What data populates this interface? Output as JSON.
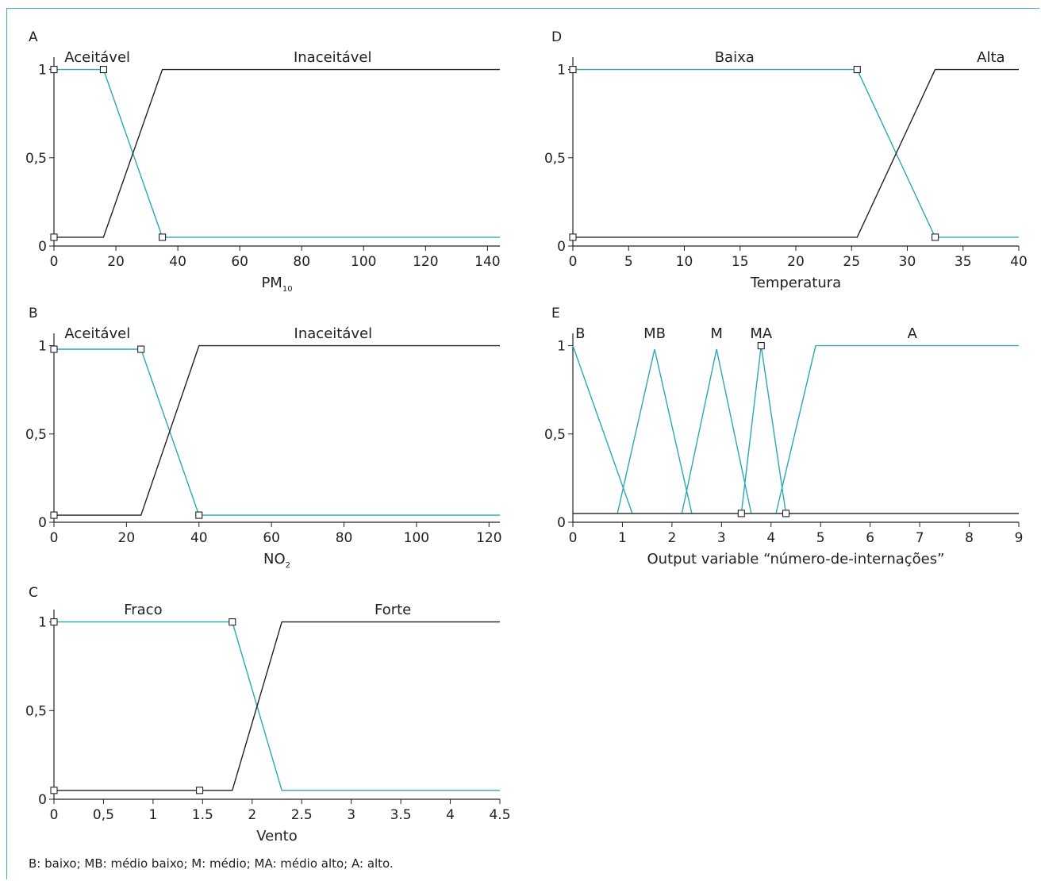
{
  "footnote": "B: baixo; MB: médio baixo; M: médio; MA: médio alto; A: alto.",
  "colors": {
    "teal": "#29a9b6",
    "black": "#222222",
    "frame": "#3bb3bf"
  },
  "chart_data": [
    {
      "panel": "A",
      "type": "line",
      "xlabel": "PM",
      "xlabel_sub": "10",
      "xlim": [
        0,
        144
      ],
      "ylim": [
        0,
        1.07
      ],
      "xticks": [
        "0",
        "20",
        "40",
        "60",
        "80",
        "100",
        "120",
        "140"
      ],
      "xtick_values": [
        0,
        20,
        40,
        60,
        80,
        100,
        120,
        140
      ],
      "yticks": [
        "0",
        "0,5",
        "1"
      ],
      "ytick_values": [
        0,
        0.5,
        1
      ],
      "series": [
        {
          "name": "Aceitável",
          "color": "teal",
          "x": [
            0,
            16,
            35,
            144
          ],
          "y": [
            1,
            1,
            0.05,
            0.05
          ],
          "markers": [
            0,
            1,
            2
          ]
        },
        {
          "name": "Inaceitável",
          "color": "black",
          "x": [
            0,
            16,
            35,
            144
          ],
          "y": [
            0.05,
            0.05,
            1,
            1
          ],
          "markers": [
            0
          ]
        }
      ],
      "labels": [
        {
          "text": "Aceitável",
          "x": 14,
          "y": 1.07
        },
        {
          "text": "Inaceitável",
          "x": 90,
          "y": 1.07
        }
      ]
    },
    {
      "panel": "B",
      "type": "line",
      "xlabel": "NO",
      "xlabel_sub": "2",
      "xlim": [
        0,
        123
      ],
      "ylim": [
        0,
        1.07
      ],
      "xticks": [
        "0",
        "20",
        "40",
        "60",
        "80",
        "100",
        "120"
      ],
      "xtick_values": [
        0,
        20,
        40,
        60,
        80,
        100,
        120
      ],
      "yticks": [
        "0",
        "0,5",
        "1"
      ],
      "ytick_values": [
        0,
        0.5,
        1
      ],
      "series": [
        {
          "name": "Aceitável",
          "color": "teal",
          "x": [
            0,
            24,
            40,
            123
          ],
          "y": [
            0.98,
            0.98,
            0.04,
            0.04
          ],
          "markers": [
            0,
            1,
            2
          ]
        },
        {
          "name": "Inaceitável",
          "color": "black",
          "x": [
            0,
            24,
            40,
            123
          ],
          "y": [
            0.04,
            0.04,
            1,
            1
          ],
          "markers": [
            0
          ]
        }
      ],
      "labels": [
        {
          "text": "Aceitável",
          "x": 12,
          "y": 1.07
        },
        {
          "text": "Inaceitável",
          "x": 77,
          "y": 1.07
        }
      ]
    },
    {
      "panel": "C",
      "type": "line",
      "xlabel": "Vento",
      "xlabel_sub": "",
      "xlim": [
        0,
        4.5
      ],
      "ylim": [
        0,
        1.07
      ],
      "xticks": [
        "0",
        "0,5",
        "1",
        "1.5",
        "2",
        "2.5",
        "3",
        "3.5",
        "4",
        "4.5"
      ],
      "xtick_values": [
        0,
        0.5,
        1,
        1.5,
        2,
        2.5,
        3,
        3.5,
        4,
        4.5
      ],
      "yticks": [
        "0",
        "0,5",
        "1"
      ],
      "ytick_values": [
        0,
        0.5,
        1
      ],
      "series": [
        {
          "name": "Fraco",
          "color": "teal",
          "x": [
            0,
            1.8,
            2.3,
            4.5
          ],
          "y": [
            1,
            1,
            0.05,
            0.05
          ],
          "markers": [
            0,
            1
          ]
        },
        {
          "name": "Forte",
          "color": "black",
          "x": [
            0,
            1.8,
            2.3,
            4.5
          ],
          "y": [
            0.05,
            0.05,
            1,
            1
          ],
          "markers": [
            0
          ],
          "extra_markers": [
            [
              1.47,
              0.05
            ]
          ]
        }
      ],
      "labels": [
        {
          "text": "Fraco",
          "x": 0.9,
          "y": 1.07
        },
        {
          "text": "Forte",
          "x": 3.42,
          "y": 1.07
        }
      ]
    },
    {
      "panel": "D",
      "type": "line",
      "xlabel": "Temperatura",
      "xlabel_sub": "",
      "xlim": [
        0,
        40
      ],
      "ylim": [
        0,
        1.07
      ],
      "xticks": [
        "0",
        "5",
        "10",
        "15",
        "20",
        "25",
        "30",
        "35",
        "40"
      ],
      "xtick_values": [
        0,
        5,
        10,
        15,
        20,
        25,
        30,
        35,
        40
      ],
      "yticks": [
        "0",
        "0,5",
        "1"
      ],
      "ytick_values": [
        0,
        0.5,
        1
      ],
      "series": [
        {
          "name": "Baixa",
          "color": "teal",
          "x": [
            0,
            25.5,
            32.5,
            40
          ],
          "y": [
            1,
            1,
            0.05,
            0.05
          ],
          "markers": [
            0,
            1,
            2
          ]
        },
        {
          "name": "Alta",
          "color": "black",
          "x": [
            0,
            25.5,
            32.5,
            40
          ],
          "y": [
            0.05,
            0.05,
            1,
            1
          ],
          "markers": [
            0
          ]
        }
      ],
      "labels": [
        {
          "text": "Baixa",
          "x": 14.5,
          "y": 1.07
        },
        {
          "text": "Alta",
          "x": 37.5,
          "y": 1.07
        }
      ]
    },
    {
      "panel": "E",
      "type": "line",
      "xlabel": "Output variable “número-de-internações”",
      "xlabel_sub": "",
      "xlim": [
        0,
        9
      ],
      "ylim": [
        0,
        1.07
      ],
      "xticks": [
        "0",
        "1",
        "2",
        "3",
        "4",
        "5",
        "6",
        "7",
        "8",
        "9"
      ],
      "xtick_values": [
        0,
        1,
        2,
        3,
        4,
        5,
        6,
        7,
        8,
        9
      ],
      "yticks": [
        "0",
        "0,5",
        "1"
      ],
      "ytick_values": [
        0,
        0.5,
        1
      ],
      "series": [
        {
          "name": "B",
          "color": "teal",
          "x": [
            0,
            1.2
          ],
          "y": [
            1,
            0.05
          ],
          "markers": []
        },
        {
          "name": "MB",
          "color": "teal",
          "x": [
            0.9,
            1.65,
            2.4
          ],
          "y": [
            0.05,
            0.98,
            0.05
          ],
          "markers": []
        },
        {
          "name": "M",
          "color": "teal",
          "x": [
            2.2,
            2.9,
            3.6
          ],
          "y": [
            0.05,
            0.98,
            0.05
          ],
          "markers": []
        },
        {
          "name": "MA",
          "color": "teal",
          "x": [
            3.4,
            3.8,
            4.3
          ],
          "y": [
            0.05,
            1,
            0.05
          ],
          "markers": [
            1
          ]
        },
        {
          "name": "A",
          "color": "teal",
          "x": [
            4.1,
            4.9,
            9
          ],
          "y": [
            0.05,
            1,
            1
          ],
          "markers": []
        },
        {
          "name": "",
          "color": "black",
          "x": [
            0,
            9
          ],
          "y": [
            0.05,
            0.05
          ],
          "markers": [],
          "extra_markers": [
            [
              3.4,
              0.05
            ],
            [
              4.3,
              0.05
            ]
          ]
        }
      ],
      "labels": [
        {
          "text": "B",
          "x": 0.15,
          "y": 1.07
        },
        {
          "text": "MB",
          "x": 1.65,
          "y": 1.07
        },
        {
          "text": "M",
          "x": 2.9,
          "y": 1.07
        },
        {
          "text": "MA",
          "x": 3.8,
          "y": 1.07
        },
        {
          "text": "A",
          "x": 6.85,
          "y": 1.07
        }
      ]
    }
  ]
}
